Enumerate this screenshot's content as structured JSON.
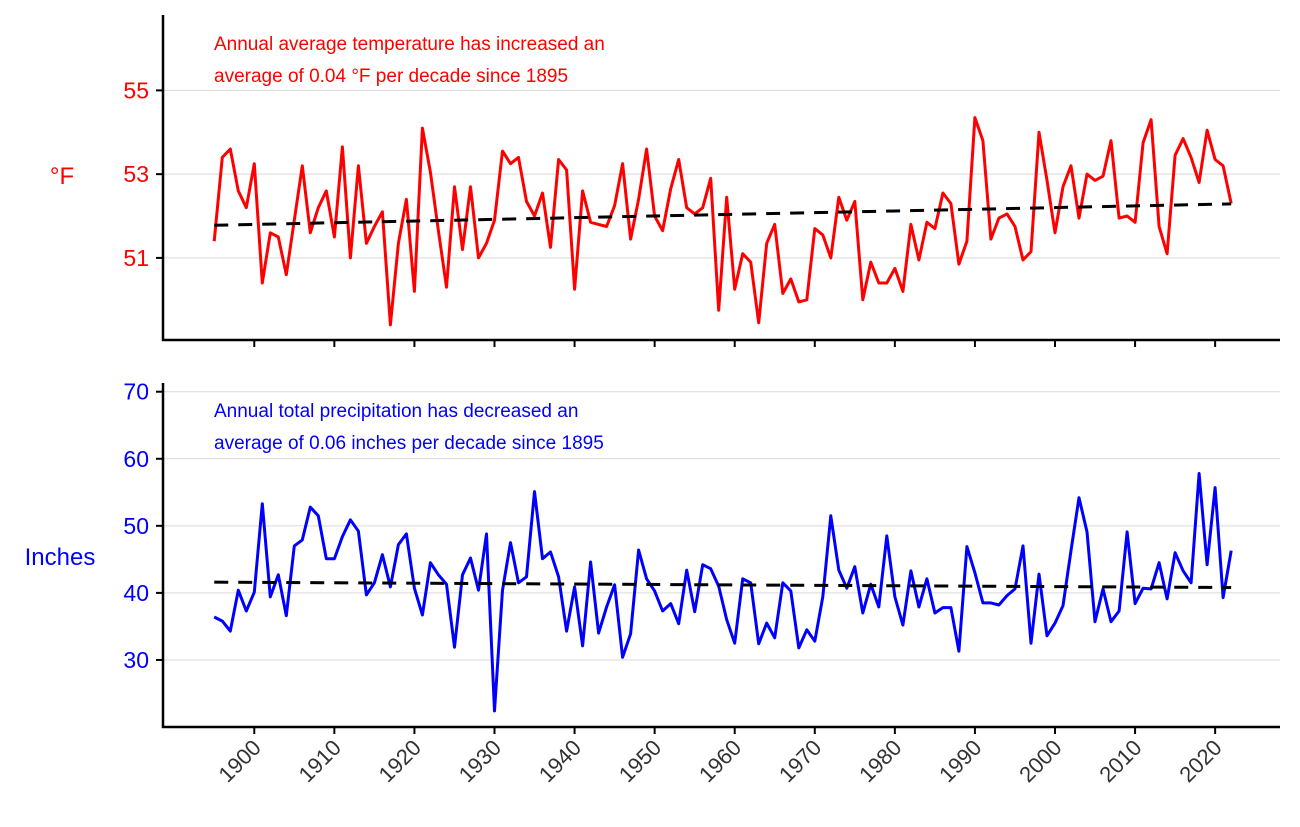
{
  "chart_data": [
    {
      "type": "line",
      "ylabel": "°F",
      "annotation": [
        "Annual average temperature has increased an",
        "average of 0.04 °F per decade since 1895"
      ],
      "color": "#ff0000",
      "xlim": [
        1888.6,
        2028.1
      ],
      "ylim": [
        49.04,
        56.8
      ],
      "yticks": [
        51,
        53,
        55
      ],
      "xticks": [
        1900,
        1910,
        1920,
        1930,
        1940,
        1950,
        1960,
        1970,
        1980,
        1990,
        2000,
        2010,
        2020
      ],
      "grid": "horizontal",
      "x_start": 1895,
      "values": [
        51.4,
        53.4,
        53.6,
        52.6,
        52.2,
        53.25,
        50.4,
        51.6,
        51.5,
        50.6,
        51.9,
        53.2,
        51.6,
        52.2,
        52.6,
        51.5,
        53.65,
        51.0,
        53.2,
        51.35,
        51.75,
        52.1,
        49.4,
        51.35,
        52.4,
        50.2,
        54.1,
        53.05,
        51.65,
        50.3,
        52.7,
        51.2,
        52.7,
        51.0,
        51.35,
        51.9,
        53.55,
        53.25,
        53.4,
        52.35,
        52.0,
        52.55,
        51.25,
        53.35,
        53.1,
        50.25,
        52.6,
        51.85,
        51.8,
        51.75,
        52.25,
        53.25,
        51.45,
        52.4,
        53.6,
        52.0,
        51.65,
        52.65,
        53.35,
        52.2,
        52.05,
        52.2,
        52.9,
        49.75,
        52.45,
        50.25,
        51.1,
        50.9,
        49.45,
        51.35,
        51.8,
        50.15,
        50.5,
        49.95,
        50.0,
        51.7,
        51.55,
        51.0,
        52.45,
        51.9,
        52.35,
        50.0,
        50.9,
        50.4,
        50.4,
        50.75,
        50.2,
        51.8,
        50.95,
        51.85,
        51.7,
        52.55,
        52.3,
        50.85,
        51.4,
        54.35,
        53.8,
        51.45,
        51.95,
        52.05,
        51.75,
        50.95,
        51.15,
        54.0,
        52.85,
        51.6,
        52.7,
        53.2,
        51.95,
        53.0,
        52.85,
        52.95,
        53.8,
        51.95,
        52.0,
        51.85,
        53.75,
        54.3,
        51.75,
        51.1,
        53.45,
        53.85,
        53.4,
        52.8,
        54.05,
        53.35,
        53.2,
        52.3
      ],
      "trend": {
        "x": [
          1895,
          2022
        ],
        "y": [
          51.78,
          52.29
        ]
      }
    },
    {
      "type": "line",
      "ylabel": "Inches",
      "annotation": [
        "Annual total precipitation has decreased an",
        "average of 0.06 inches per decade since 1895"
      ],
      "color": "#0000ff",
      "xlim": [
        1888.6,
        2028.1
      ],
      "ylim": [
        20.0,
        71.3
      ],
      "yticks": [
        30,
        40,
        50,
        60,
        70
      ],
      "xticks": [
        1900,
        1910,
        1920,
        1930,
        1940,
        1950,
        1960,
        1970,
        1980,
        1990,
        2000,
        2010,
        2020
      ],
      "grid": "horizontal",
      "x_start": 1895,
      "values": [
        36.4,
        35.8,
        34.3,
        40.4,
        37.3,
        40.1,
        53.3,
        39.4,
        42.7,
        36.6,
        47.0,
        47.9,
        52.8,
        51.5,
        45.1,
        45.1,
        48.4,
        50.9,
        49.2,
        39.7,
        41.5,
        45.7,
        40.9,
        47.2,
        48.8,
        40.7,
        36.7,
        44.5,
        42.7,
        41.3,
        31.9,
        42.7,
        45.2,
        40.4,
        48.8,
        22.4,
        40.4,
        47.5,
        41.5,
        42.4,
        55.1,
        45.1,
        46.1,
        42.4,
        34.3,
        40.9,
        32.1,
        44.6,
        34.0,
        37.9,
        41.2,
        30.4,
        33.9,
        46.4,
        42.1,
        40.3,
        37.3,
        38.4,
        35.4,
        43.4,
        37.2,
        44.2,
        43.6,
        41.0,
        36.0,
        32.5,
        42.1,
        41.5,
        32.4,
        35.5,
        33.3,
        41.5,
        40.3,
        31.8,
        34.5,
        32.8,
        39.4,
        51.5,
        43.4,
        40.7,
        43.9,
        37.0,
        41.3,
        37.9,
        48.5,
        39.4,
        35.2,
        43.3,
        37.9,
        42.1,
        37.0,
        37.8,
        37.8,
        31.3,
        46.9,
        43.0,
        38.5,
        38.5,
        38.2,
        39.6,
        40.6,
        47.0,
        32.5,
        42.8,
        33.6,
        35.5,
        38.1,
        46.3,
        54.2,
        49.1,
        35.7,
        40.6,
        35.7,
        37.3,
        49.1,
        38.4,
        40.7,
        40.6,
        44.5,
        39.1,
        46.0,
        43.3,
        41.5,
        57.8,
        44.2,
        55.7,
        39.3,
        46.3
      ],
      "trend": {
        "x": [
          1895,
          2022
        ],
        "y": [
          41.6,
          40.8
        ]
      }
    }
  ]
}
